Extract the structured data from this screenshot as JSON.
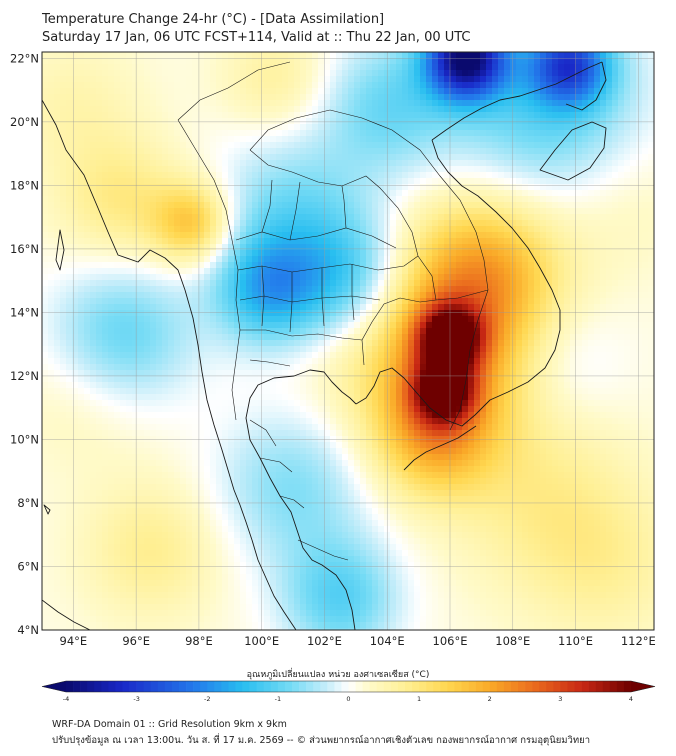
{
  "header": {
    "title_line1": "Temperature Change 24-hr (°C) - [Data Assimilation]",
    "title_line2": "Saturday 17 Jan, 06 UTC FCST+114, Valid at :: Thu 22 Jan, 00 UTC"
  },
  "map": {
    "lat_labels": [
      "22°N",
      "20°N",
      "18°N",
      "16°N",
      "14°N",
      "12°N",
      "10°N",
      "8°N",
      "6°N",
      "4°N"
    ],
    "lon_labels": [
      "94°E",
      "96°E",
      "98°E",
      "100°E",
      "102°E",
      "104°E",
      "106°E",
      "108°E",
      "110°E",
      "112°E"
    ],
    "lat_range": [
      4,
      22.2
    ],
    "lon_range": [
      93,
      112.5
    ],
    "anomalies": [
      {
        "name": "cold-myanmar-east",
        "lon": 100.2,
        "lat": 14.7,
        "val": -1.6,
        "r": 1.2
      },
      {
        "name": "cold-thailand-central",
        "lon": 102.8,
        "lat": 15.0,
        "val": -1.3,
        "r": 1.4
      },
      {
        "name": "cold-north",
        "lon": 101.0,
        "lat": 17.0,
        "val": -1.0,
        "r": 1.8
      },
      {
        "name": "cold-andaman",
        "lon": 95.5,
        "lat": 13.2,
        "val": -1.2,
        "r": 1.6
      },
      {
        "name": "cold-hainan-gulf",
        "lon": 109.0,
        "lat": 20.5,
        "val": -1.2,
        "r": 2.2
      },
      {
        "name": "cold-deep-north",
        "lon": 106.5,
        "lat": 22.0,
        "val": -3.8,
        "r": 0.9
      },
      {
        "name": "cold-north-ne",
        "lon": 109.8,
        "lat": 21.8,
        "val": -2.4,
        "r": 0.9
      },
      {
        "name": "cold-gulf-thailand",
        "lon": 101.0,
        "lat": 8.5,
        "val": -0.9,
        "r": 1.7
      },
      {
        "name": "cold-south",
        "lon": 102.5,
        "lat": 5.0,
        "val": -1.2,
        "r": 1.3
      },
      {
        "name": "cold-mid-sea",
        "lon": 109.5,
        "lat": 12.5,
        "val": -0.5,
        "r": 1.4
      },
      {
        "name": "cold-laos-north",
        "lon": 104.0,
        "lat": 20.5,
        "val": -1.0,
        "r": 1.5
      },
      {
        "name": "warm-cambodia-core",
        "lon": 106.0,
        "lat": 13.2,
        "val": 3.0,
        "r": 0.7
      },
      {
        "name": "warm-cambodia-south",
        "lon": 105.8,
        "lat": 11.5,
        "val": 2.6,
        "r": 0.7
      },
      {
        "name": "warm-cambodia",
        "lon": 105.8,
        "lat": 12.8,
        "val": 2.0,
        "r": 2.2
      },
      {
        "name": "warm-vietnam-central",
        "lon": 107.2,
        "lat": 15.5,
        "val": 1.4,
        "r": 1.7
      },
      {
        "name": "warm-mekong-delta",
        "lon": 105.5,
        "lat": 10.0,
        "val": 1.3,
        "r": 1.3
      },
      {
        "name": "warm-myanmar-west",
        "lon": 97.8,
        "lat": 16.8,
        "val": 1.5,
        "r": 0.9
      },
      {
        "name": "warm-myanmar-west2",
        "lon": 95.5,
        "lat": 17.5,
        "val": 0.8,
        "r": 1.4
      },
      {
        "name": "warm-sw-sea",
        "lon": 94.5,
        "lat": 11.5,
        "val": 0.4,
        "r": 1.6
      },
      {
        "name": "warm-south-sea",
        "lon": 96.5,
        "lat": 6.5,
        "val": 0.7,
        "r": 1.5
      },
      {
        "name": "warm-nw",
        "lon": 94.0,
        "lat": 20.5,
        "val": 0.4,
        "r": 1.5
      },
      {
        "name": "warm-sc-sea",
        "lon": 109.0,
        "lat": 8.0,
        "val": 0.6,
        "r": 2.0
      },
      {
        "name": "warm-sc-sea2",
        "lon": 111.0,
        "lat": 6.0,
        "val": 0.5,
        "r": 1.8
      },
      {
        "name": "warm-ne-se",
        "lon": 111.5,
        "lat": 17.5,
        "val": 0.3,
        "r": 1.6
      },
      {
        "name": "warm-north-center",
        "lon": 100.5,
        "lat": 21.3,
        "val": 0.6,
        "r": 1.2
      }
    ]
  },
  "colorbar": {
    "title": "อุณหภูมิเปลี่ยนแปลง หน่วย องศาเซลเซียส (°C)",
    "ticks": [
      "-4",
      "-3",
      "-2",
      "-1",
      "0",
      "1",
      "2",
      "3",
      "4"
    ],
    "min": -4,
    "max": 4
  },
  "footer": {
    "line1": "WRF-DA Domain 01 :: Grid Resolution 9km x 9km",
    "line2": "ปรับปรุงข้อมูล ณ เวลา 13:00น. วัน ส. ที่ 17 ม.ค. 2569 -- © ส่วนพยากรณ์อากาศเชิงตัวเลข กองพยากรณ์อากาศ กรมอุตุนิยมวิทยา"
  }
}
